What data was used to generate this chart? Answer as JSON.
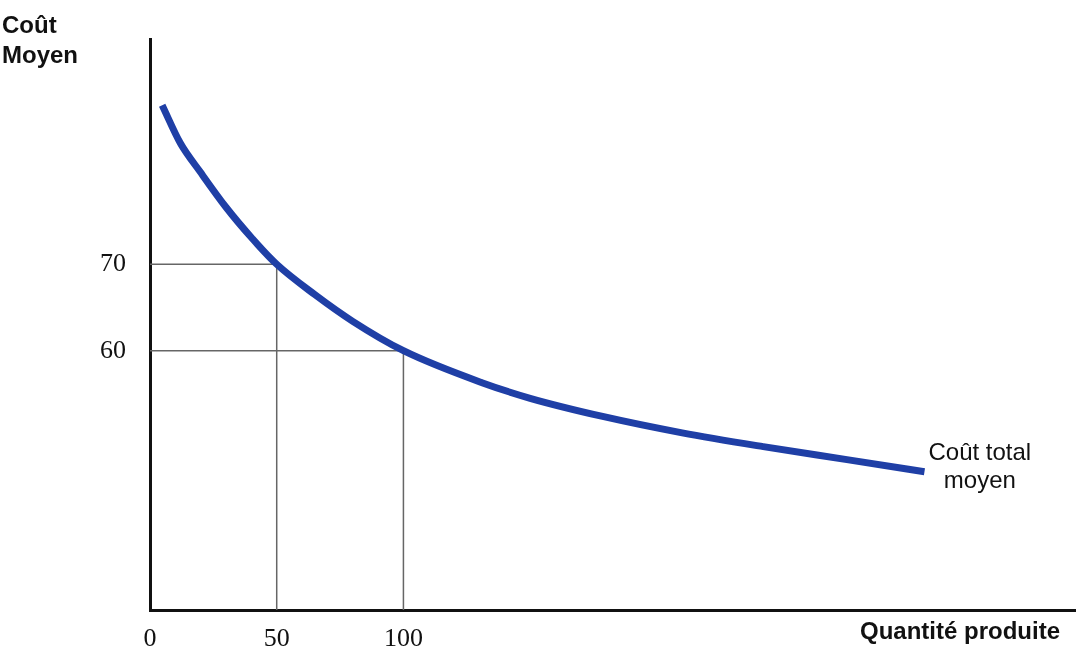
{
  "chart_data": {
    "type": "line",
    "xlabel": "Quantité produite",
    "ylabel": "Coût Moyen",
    "xlim": [
      0,
      365
    ],
    "ylim": [
      30,
      96
    ],
    "xticks": [
      0,
      50,
      100
    ],
    "yticks": [
      60,
      70
    ],
    "grid": false,
    "legend": false,
    "marker": "none",
    "line_style": "solid",
    "series": [
      {
        "name": null,
        "color": "#1f3fa6",
        "x": [
          4.8,
          12,
          19.8,
          30,
          40,
          50,
          65,
          80,
          100,
          131,
          150,
          178.6,
          210,
          242,
          275,
          305.6
        ],
        "values": [
          88.4,
          84,
          80.7,
          76.6,
          73.1,
          70,
          66.5,
          63.4,
          60,
          56.3,
          54.5,
          52.4,
          50.5,
          48.9,
          47.4,
          46
        ]
      },
      {
        "name": null,
        "color": "#666666",
        "x": [
          0,
          50,
          50
        ],
        "values": [
          70,
          70,
          30
        ]
      },
      {
        "name": null,
        "color": "#666666",
        "x": [
          0,
          100,
          100
        ],
        "values": [
          60,
          60,
          30
        ]
      }
    ],
    "annotations": [
      {
        "text": "Coût total moyen",
        "x": 305.6,
        "y": 46
      }
    ]
  }
}
